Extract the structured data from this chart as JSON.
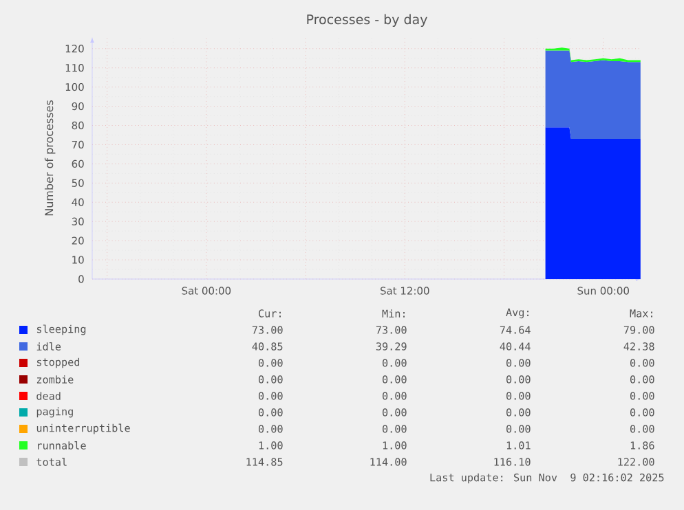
{
  "chart_data": {
    "type": "area",
    "title": "Processes - by day",
    "ylabel": "Number of processes",
    "stacked": true,
    "legend": "bottom",
    "grid": true,
    "xlim": [
      "2025-11-07T17:06",
      "2025-11-09T02:18"
    ],
    "ylim": [
      0,
      126
    ],
    "xticks": [
      {
        "value": "2025-11-07T18:00",
        "label": null
      },
      {
        "value": "2025-11-08T00:00",
        "label": "Sat 00:00"
      },
      {
        "value": "2025-11-08T06:00",
        "label": null
      },
      {
        "value": "2025-11-08T12:00",
        "label": "Sat 12:00"
      },
      {
        "value": "2025-11-08T18:00",
        "label": null
      },
      {
        "value": "2025-11-09T00:00",
        "label": "Sun 00:00"
      }
    ],
    "yticks": [
      0,
      10,
      20,
      30,
      40,
      50,
      60,
      70,
      80,
      90,
      100,
      110,
      120
    ],
    "x": [
      "2025-11-08T20:30",
      "2025-11-08T21:00",
      "2025-11-08T21:30",
      "2025-11-08T21:57",
      "2025-11-08T22:03",
      "2025-11-08T22:30",
      "2025-11-08T23:00",
      "2025-11-08T23:30",
      "2025-11-09T00:00",
      "2025-11-09T00:30",
      "2025-11-09T01:00",
      "2025-11-09T01:30",
      "2025-11-09T02:00",
      "2025-11-09T02:15"
    ],
    "series": [
      {
        "name": "sleeping",
        "color": "#0022ff",
        "values": [
          79,
          79,
          79,
          79,
          73,
          73,
          73,
          73,
          73,
          73,
          73,
          73,
          73,
          73
        ]
      },
      {
        "name": "idle",
        "color": "#4169e1",
        "values": [
          40,
          40,
          40,
          40,
          40,
          40.5,
          40,
          40.5,
          41,
          40.5,
          40.5,
          40,
          40,
          40
        ]
      },
      {
        "name": "stopped",
        "color": "#cc0000",
        "values": [
          null,
          null,
          null,
          null,
          null,
          null,
          null,
          null,
          null,
          null,
          null,
          null,
          null,
          null
        ]
      },
      {
        "name": "zombie",
        "color": "#990000",
        "values": [
          null,
          null,
          null,
          null,
          null,
          null,
          null,
          null,
          null,
          null,
          null,
          null,
          null,
          null
        ]
      },
      {
        "name": "dead",
        "color": "#ff0000",
        "values": [
          null,
          null,
          null,
          null,
          null,
          null,
          null,
          null,
          null,
          null,
          null,
          null,
          null,
          null
        ]
      },
      {
        "name": "paging",
        "color": "#00aaaa",
        "values": [
          null,
          null,
          null,
          null,
          null,
          null,
          null,
          null,
          null,
          null,
          null,
          null,
          null,
          null
        ]
      },
      {
        "name": "uninterruptible",
        "color": "#ffa500",
        "values": [
          null,
          null,
          null,
          null,
          null,
          null,
          null,
          null,
          null,
          null,
          null,
          null,
          null,
          null
        ]
      },
      {
        "name": "runnable",
        "color": "#22ff22",
        "values": [
          1,
          1,
          1.5,
          1,
          1,
          1,
          1,
          1,
          1,
          1,
          1.5,
          1,
          1,
          1
        ]
      },
      {
        "name": "total",
        "color": "#c0c0c0",
        "values": [
          null,
          null,
          null,
          null,
          null,
          null,
          null,
          null,
          null,
          null,
          null,
          null,
          null,
          null
        ]
      }
    ],
    "annotations": [
      "Cur:",
      "Min:",
      "Avg:",
      "Max:",
      "73.00",
      "73.00",
      "74.64",
      "79.00",
      "40.85",
      "39.29",
      "40.44",
      "42.38",
      "0.00",
      "0.00",
      "0.00",
      "0.00",
      "0.00",
      "0.00",
      "0.00",
      "0.00",
      "0.00",
      "0.00",
      "0.00",
      "0.00",
      "0.00",
      "0.00",
      "0.00",
      "0.00",
      "0.00",
      "0.00",
      "0.00",
      "0.00",
      "1.00",
      "1.00",
      "1.01",
      "1.86",
      "114.85",
      "114.00",
      "116.10",
      "122.00",
      "Last update: Sun Nov  9 02:16:02 2025"
    ]
  }
}
